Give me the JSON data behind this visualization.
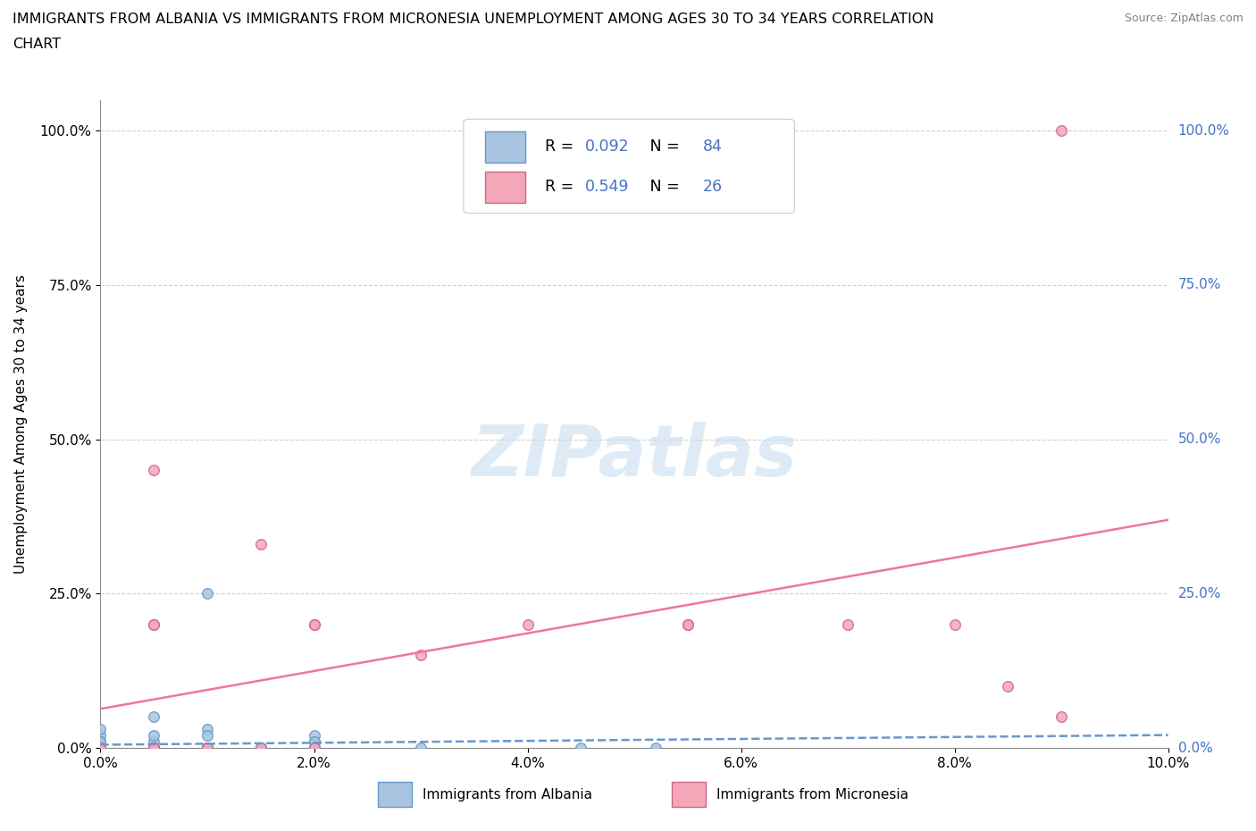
{
  "title_line1": "IMMIGRANTS FROM ALBANIA VS IMMIGRANTS FROM MICRONESIA UNEMPLOYMENT AMONG AGES 30 TO 34 YEARS CORRELATION",
  "title_line2": "CHART",
  "source": "Source: ZipAtlas.com",
  "ylabel": "Unemployment Among Ages 30 to 34 years",
  "xlim": [
    0.0,
    0.1
  ],
  "ylim": [
    0.0,
    1.05
  ],
  "albania_color": "#a8c4e0",
  "albania_edge": "#6699cc",
  "albania_line_color": "#6699cc",
  "micronesia_color": "#f4a7b9",
  "micronesia_edge": "#cc6688",
  "micronesia_line_color": "#ee7799",
  "albania_R": 0.092,
  "albania_N": 84,
  "micronesia_R": 0.549,
  "micronesia_N": 26,
  "stat_color": "#4472c4",
  "watermark_color": "#c8dff0",
  "legend_albania": "Immigrants from Albania",
  "legend_micronesia": "Immigrants from Micronesia",
  "albania_scatter_x": [
    0.0,
    0.005,
    0.0,
    0.01,
    0.0,
    0.0,
    0.02,
    0.0,
    0.0,
    0.0,
    0.01,
    0.0,
    0.0,
    0.005,
    0.01,
    0.02,
    0.0,
    0.0,
    0.01,
    0.015,
    0.005,
    0.0,
    0.0,
    0.0,
    0.0,
    0.0,
    0.0,
    0.01,
    0.0,
    0.005,
    0.02,
    0.03,
    0.005,
    0.0,
    0.01,
    0.015,
    0.005,
    0.0,
    0.0,
    0.02,
    0.005,
    0.01,
    0.0,
    0.005,
    0.0,
    0.0,
    0.005,
    0.0,
    0.01,
    0.005,
    0.005,
    0.01,
    0.0,
    0.02,
    0.005,
    0.01,
    0.015,
    0.0,
    0.005,
    0.0,
    0.0,
    0.005,
    0.01,
    0.02,
    0.005,
    0.0,
    0.0,
    0.0,
    0.005,
    0.0,
    0.0,
    0.0,
    0.0,
    0.0,
    0.0,
    0.0,
    0.052,
    0.0,
    0.005,
    0.045,
    0.0,
    0.01,
    0.0,
    0.005
  ],
  "albania_scatter_y": [
    0.0,
    0.01,
    0.02,
    0.0,
    0.0,
    0.0,
    0.01,
    0.0,
    0.0,
    0.01,
    0.03,
    0.0,
    0.0,
    0.0,
    0.0,
    0.02,
    0.0,
    0.01,
    0.0,
    0.0,
    0.05,
    0.03,
    0.0,
    0.0,
    0.0,
    0.0,
    0.0,
    0.0,
    0.01,
    0.0,
    0.0,
    0.0,
    0.0,
    0.0,
    0.02,
    0.0,
    0.0,
    0.0,
    0.0,
    0.0,
    0.0,
    0.0,
    0.0,
    0.0,
    0.0,
    0.0,
    0.0,
    0.0,
    0.0,
    0.0,
    0.02,
    0.0,
    0.0,
    0.01,
    0.0,
    0.25,
    0.0,
    0.0,
    0.0,
    0.0,
    0.01,
    0.0,
    0.0,
    0.0,
    0.0,
    0.0,
    0.0,
    0.0,
    0.0,
    0.0,
    0.0,
    0.0,
    0.0,
    0.0,
    0.0,
    0.0,
    0.0,
    0.0,
    0.0,
    0.0,
    0.0,
    0.0,
    0.0,
    0.0
  ],
  "micronesia_scatter_x": [
    0.0,
    0.01,
    0.005,
    0.015,
    0.02,
    0.005,
    0.015,
    0.02,
    0.005,
    0.0,
    0.0,
    0.03,
    0.04,
    0.055,
    0.055,
    0.08,
    0.09,
    0.0,
    0.01,
    0.0,
    0.005,
    0.02,
    0.09,
    0.085,
    0.07,
    0.005
  ],
  "micronesia_scatter_y": [
    0.0,
    0.0,
    0.45,
    0.33,
    0.2,
    0.2,
    0.0,
    0.2,
    0.2,
    0.0,
    0.0,
    0.15,
    0.2,
    0.2,
    0.2,
    0.2,
    1.0,
    0.0,
    0.0,
    0.0,
    0.0,
    0.0,
    0.05,
    0.1,
    0.2,
    0.0
  ]
}
